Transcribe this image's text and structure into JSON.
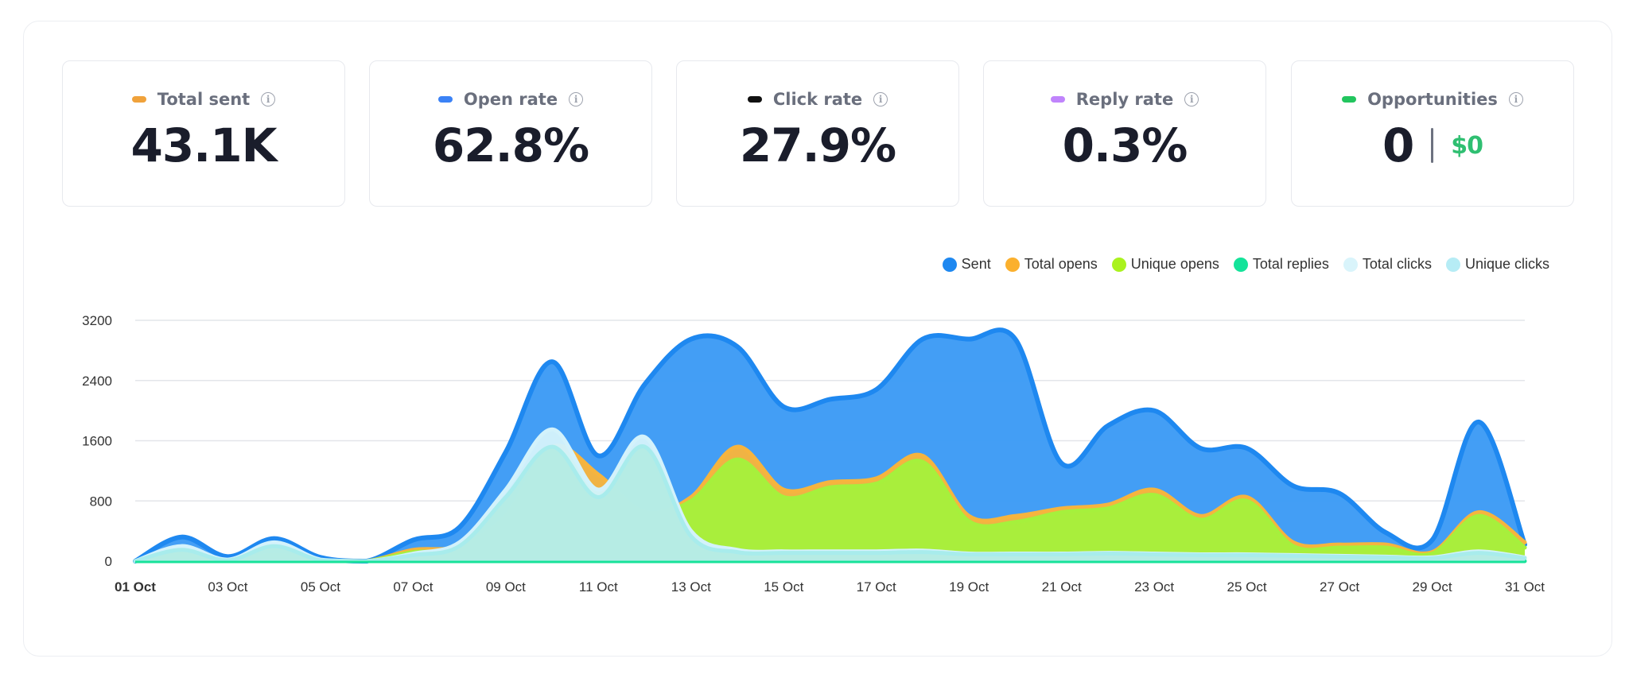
{
  "cards": [
    {
      "label": "Total sent",
      "value": "43.1K",
      "color": "#f0a23b"
    },
    {
      "label": "Open rate",
      "value": "62.8%",
      "color": "#3b82f6"
    },
    {
      "label": "Click rate",
      "value": "27.9%",
      "color": "#111111"
    },
    {
      "label": "Reply rate",
      "value": "0.3%",
      "color": "#c084fc"
    },
    {
      "label": "Opportunities",
      "value": "0",
      "money": "$0",
      "color": "#22c55e"
    }
  ],
  "info_icon_glyph": "i",
  "legend": [
    {
      "label": "Sent",
      "color": "#1e88f0"
    },
    {
      "label": "Total opens",
      "color": "#fbb02d"
    },
    {
      "label": "Unique opens",
      "color": "#aaf21e"
    },
    {
      "label": "Total replies",
      "color": "#14e39a"
    },
    {
      "label": "Total clicks",
      "color": "#d9f4fb"
    },
    {
      "label": "Unique clicks",
      "color": "#b6ecf5"
    }
  ],
  "chart_data": {
    "type": "area",
    "x": [
      "01 Oct",
      "02 Oct",
      "03 Oct",
      "04 Oct",
      "05 Oct",
      "06 Oct",
      "07 Oct",
      "08 Oct",
      "09 Oct",
      "10 Oct",
      "11 Oct",
      "12 Oct",
      "13 Oct",
      "14 Oct",
      "15 Oct",
      "16 Oct",
      "17 Oct",
      "18 Oct",
      "19 Oct",
      "20 Oct",
      "21 Oct",
      "22 Oct",
      "23 Oct",
      "24 Oct",
      "25 Oct",
      "26 Oct",
      "27 Oct",
      "28 Oct",
      "29 Oct",
      "30 Oct",
      "31 Oct"
    ],
    "x_tick_labels": [
      "01 Oct",
      "03 Oct",
      "05 Oct",
      "07 Oct",
      "09 Oct",
      "11 Oct",
      "13 Oct",
      "15 Oct",
      "17 Oct",
      "19 Oct",
      "21 Oct",
      "23 Oct",
      "25 Oct",
      "27 Oct",
      "29 Oct",
      "31 Oct"
    ],
    "y_ticks": [
      0,
      800,
      1600,
      2400,
      3200
    ],
    "ylim": [
      0,
      3200
    ],
    "grid": true,
    "legend_position": "top-right",
    "series": [
      {
        "name": "Sent",
        "color": "#1e88f0",
        "fill": "#3d9bf5",
        "values": [
          0,
          320,
          60,
          300,
          50,
          0,
          280,
          450,
          1450,
          2650,
          1400,
          2350,
          2950,
          2850,
          2050,
          2150,
          2280,
          2950,
          2950,
          2950,
          1300,
          1800,
          2000,
          1500,
          1500,
          1000,
          900,
          380,
          280,
          1850,
          220
        ]
      },
      {
        "name": "Total opens",
        "color": "#f6b43e",
        "fill": "#f6b43e",
        "values": [
          0,
          100,
          10,
          80,
          10,
          0,
          150,
          200,
          600,
          1520,
          1150,
          650,
          850,
          1520,
          950,
          1050,
          1100,
          1400,
          600,
          600,
          700,
          750,
          950,
          600,
          850,
          250,
          220,
          220,
          120,
          650,
          250
        ]
      },
      {
        "name": "Unique opens",
        "color": "#a6f03c",
        "fill": "#a6f03c",
        "values": [
          0,
          80,
          5,
          70,
          5,
          0,
          120,
          160,
          580,
          1470,
          920,
          620,
          800,
          1350,
          850,
          980,
          1030,
          1320,
          530,
          520,
          650,
          700,
          880,
          550,
          800,
          200,
          180,
          180,
          100,
          600,
          180
        ]
      },
      {
        "name": "Total replies",
        "color": "#17e29a",
        "fill": "#17e29a",
        "values": [
          0,
          5,
          0,
          5,
          0,
          0,
          5,
          5,
          10,
          10,
          8,
          8,
          8,
          8,
          8,
          8,
          8,
          8,
          5,
          5,
          5,
          5,
          5,
          5,
          5,
          5,
          5,
          5,
          0,
          5,
          0
        ]
      },
      {
        "name": "Total clicks",
        "color": "#d3f2fb",
        "fill": "#d3f2fb",
        "values": [
          0,
          200,
          20,
          250,
          20,
          0,
          100,
          250,
          950,
          1750,
          950,
          1650,
          400,
          150,
          130,
          130,
          130,
          140,
          100,
          100,
          100,
          110,
          100,
          90,
          90,
          80,
          70,
          60,
          50,
          130,
          50
        ]
      },
      {
        "name": "Unique clicks",
        "color": "#a8ecec",
        "fill": "#b2ebe2",
        "values": [
          0,
          150,
          10,
          200,
          10,
          0,
          80,
          200,
          850,
          1520,
          850,
          1520,
          330,
          120,
          110,
          110,
          110,
          120,
          90,
          90,
          90,
          100,
          90,
          80,
          80,
          70,
          60,
          50,
          40,
          110,
          40
        ]
      }
    ]
  }
}
